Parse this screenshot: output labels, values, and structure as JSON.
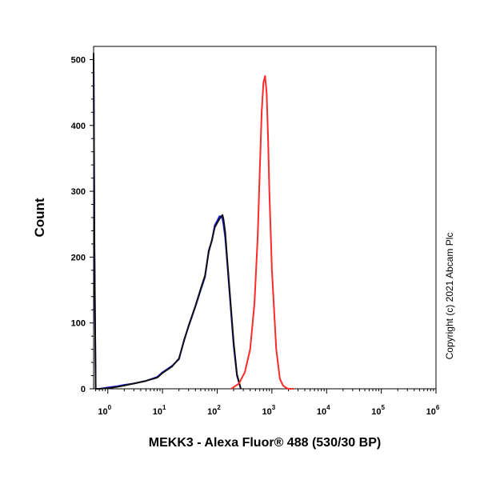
{
  "chart_data": {
    "type": "line",
    "title": "",
    "xlabel": "MEKK3 - Alexa Fluor® 488 (530/30 BP)",
    "ylabel": "Count",
    "xscale": "log",
    "xlim": [
      0.55,
      1000000
    ],
    "ylim": [
      0,
      520
    ],
    "x_tick_labels": [
      {
        "base": "10",
        "exp": "0",
        "value": 1
      },
      {
        "base": "10",
        "exp": "1",
        "value": 10
      },
      {
        "base": "10",
        "exp": "2",
        "value": 100
      },
      {
        "base": "10",
        "exp": "3",
        "value": 1000
      },
      {
        "base": "10",
        "exp": "4",
        "value": 10000
      },
      {
        "base": "10",
        "exp": "5",
        "value": 100000
      },
      {
        "base": "10",
        "exp": "6",
        "value": 1000000
      }
    ],
    "y_ticks": [
      0,
      100,
      200,
      300,
      400,
      500
    ],
    "grid": false,
    "legend": "none",
    "annotation": "Copyright (c) 2021 Abcam Plc",
    "series": [
      {
        "color": "#1a1aff",
        "x": [
          0.55,
          0.57,
          0.6,
          0.7,
          1.0,
          1.5,
          2.0,
          3.0,
          5.0,
          8.0,
          10,
          15,
          20,
          25,
          30,
          40,
          50,
          60,
          70,
          80,
          90,
          100,
          110,
          120,
          125,
          130,
          140,
          150,
          170,
          200,
          230,
          270
        ],
        "y": [
          500,
          200,
          0,
          0,
          2,
          4,
          6,
          8,
          12,
          18,
          25,
          35,
          45,
          75,
          95,
          125,
          150,
          170,
          210,
          225,
          248,
          255,
          262,
          262,
          258,
          250,
          230,
          200,
          140,
          65,
          20,
          0
        ]
      },
      {
        "color": "#111111",
        "x": [
          0.55,
          0.57,
          0.6,
          0.7,
          1.0,
          1.5,
          2.0,
          3.0,
          5.0,
          8.0,
          10,
          15,
          20,
          25,
          30,
          40,
          50,
          60,
          70,
          80,
          90,
          100,
          110,
          120,
          125,
          130,
          140,
          150,
          170,
          200,
          230,
          270
        ],
        "y": [
          510,
          210,
          0,
          0,
          1,
          3,
          5,
          8,
          12,
          17,
          24,
          34,
          46,
          74,
          96,
          126,
          152,
          172,
          208,
          226,
          245,
          252,
          258,
          262,
          264,
          258,
          238,
          205,
          145,
          70,
          22,
          0
        ]
      },
      {
        "color": "#ff2a2a",
        "x": [
          180,
          250,
          320,
          400,
          480,
          550,
          600,
          650,
          700,
          750,
          800,
          850,
          900,
          1000,
          1200,
          1400,
          1600,
          1800,
          2000,
          2500
        ],
        "y": [
          0,
          8,
          25,
          60,
          130,
          230,
          330,
          420,
          465,
          475,
          450,
          380,
          300,
          180,
          60,
          15,
          5,
          2,
          0,
          0
        ]
      }
    ]
  }
}
